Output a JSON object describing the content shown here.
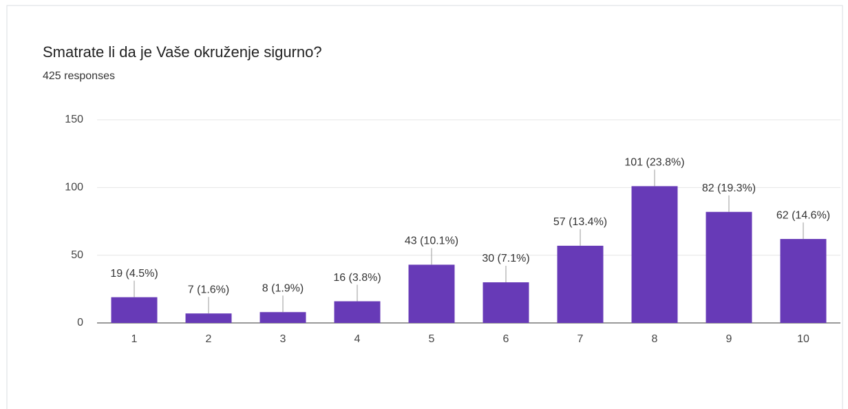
{
  "chart_data": {
    "type": "bar",
    "title": "Smatrate li da je Vaše okruženje sigurno?",
    "subtitle": "425 responses",
    "categories": [
      "1",
      "2",
      "3",
      "4",
      "5",
      "6",
      "7",
      "8",
      "9",
      "10"
    ],
    "values": [
      19,
      7,
      8,
      16,
      43,
      30,
      57,
      101,
      82,
      62
    ],
    "value_labels": [
      "19 (4.5%)",
      "7 (1.6%)",
      "8 (1.9%)",
      "16 (3.8%)",
      "43 (10.1%)",
      "30 (7.1%)",
      "57 (13.4%)",
      "101 (23.8%)",
      "82 (19.3%)",
      "62 (14.6%)"
    ],
    "color": "#673ab7",
    "ylim": [
      0,
      150
    ],
    "yticks": [
      0,
      50,
      100,
      150
    ],
    "grid": true
  }
}
